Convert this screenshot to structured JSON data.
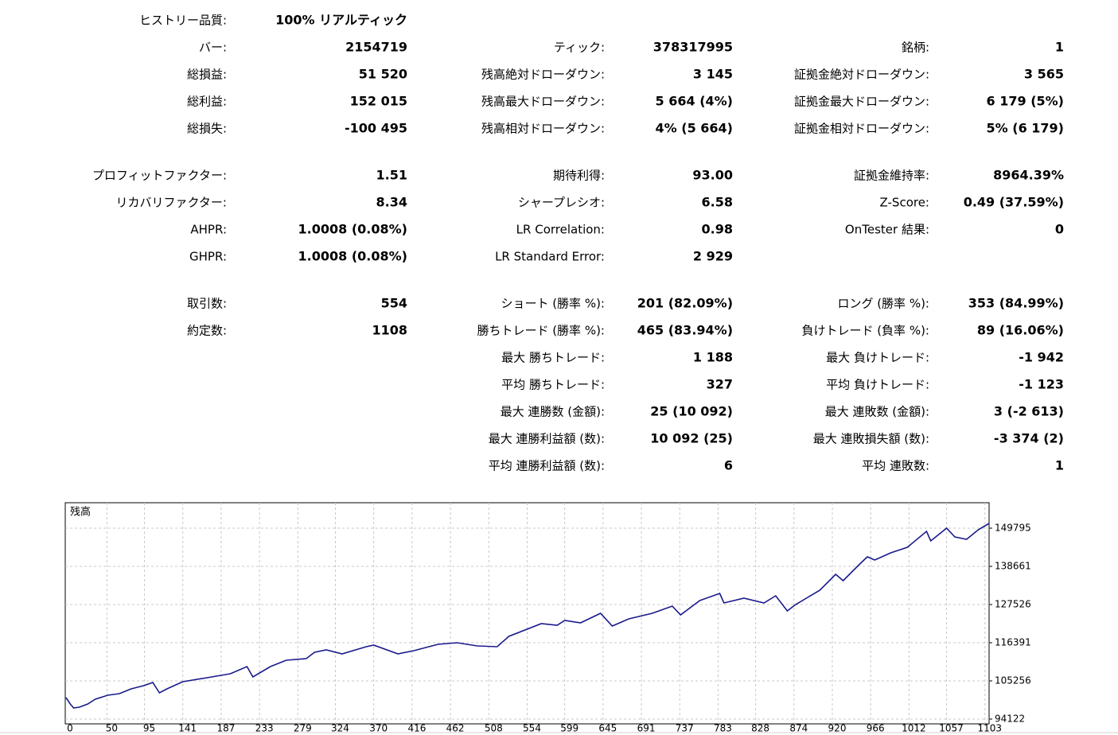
{
  "report": {
    "blocks": [
      [
        {
          "left": [
            "ヒストリー品質:",
            "100% リアルティック"
          ]
        },
        {
          "left": [
            "バー:",
            "2154719"
          ],
          "middle": [
            "ティック:",
            "378317995"
          ],
          "right": [
            "銘柄:",
            "1"
          ]
        },
        {
          "left": [
            "総損益:",
            "51 520"
          ],
          "middle": [
            "残高絶対ドローダウン:",
            "3 145"
          ],
          "right": [
            "証拠金絶対ドローダウン:",
            "3 565"
          ]
        },
        {
          "left": [
            "総利益:",
            "152 015"
          ],
          "middle": [
            "残高最大ドローダウン:",
            "5 664 (4%)"
          ],
          "right": [
            "証拠金最大ドローダウン:",
            "6 179 (5%)"
          ]
        },
        {
          "left": [
            "総損失:",
            "-100 495"
          ],
          "middle": [
            "残高相対ドローダウン:",
            "4% (5 664)"
          ],
          "right": [
            "証拠金相対ドローダウン:",
            "5% (6 179)"
          ]
        }
      ],
      [
        {
          "left": [
            "プロフィットファクター:",
            "1.51"
          ],
          "middle": [
            "期待利得:",
            "93.00"
          ],
          "right": [
            "証拠金維持率:",
            "8964.39%"
          ]
        },
        {
          "left": [
            "リカバリファクター:",
            "8.34"
          ],
          "middle": [
            "シャープレシオ:",
            "6.58"
          ],
          "right": [
            "Z-Score:",
            "0.49 (37.59%)"
          ]
        },
        {
          "left": [
            "AHPR:",
            "1.0008 (0.08%)"
          ],
          "middle": [
            "LR Correlation:",
            "0.98"
          ],
          "right": [
            "OnTester 結果:",
            "0"
          ]
        },
        {
          "left": [
            "GHPR:",
            "1.0008 (0.08%)"
          ],
          "middle": [
            "LR Standard Error:",
            "2 929"
          ]
        }
      ],
      [
        {
          "left": [
            "取引数:",
            "554"
          ],
          "middle": [
            "ショート (勝率 %):",
            "201 (82.09%)"
          ],
          "right": [
            "ロング (勝率 %):",
            "353 (84.99%)"
          ]
        },
        {
          "left": [
            "約定数:",
            "1108"
          ],
          "middle": [
            "勝ちトレード (勝率 %):",
            "465 (83.94%)"
          ],
          "right": [
            "負けトレード (負率 %):",
            "89 (16.06%)"
          ]
        },
        {
          "middle": [
            "最大 勝ちトレード:",
            "1 188"
          ],
          "right": [
            "最大 負けトレード:",
            "-1 942"
          ]
        },
        {
          "middle": [
            "平均 勝ちトレード:",
            "327"
          ],
          "right": [
            "平均 負けトレード:",
            "-1 123"
          ]
        },
        {
          "middle": [
            "最大 連勝数 (金額):",
            "25 (10 092)"
          ],
          "right": [
            "最大 連敗数 (金額):",
            "3 (-2 613)"
          ]
        },
        {
          "middle": [
            "最大 連勝利益額 (数):",
            "10 092 (25)"
          ],
          "right": [
            "最大 連敗損失額 (数):",
            "-3 374 (2)"
          ]
        },
        {
          "middle": [
            "平均 連勝利益額 (数):",
            "6"
          ],
          "right": [
            "平均 連敗数:",
            "1"
          ]
        }
      ]
    ]
  },
  "chart_data": {
    "type": "line",
    "title": "残高",
    "color": "#1a1a8c",
    "grid": true,
    "x": [
      1,
      6,
      10,
      17,
      27,
      36,
      51,
      65,
      79,
      94,
      105,
      113,
      122,
      141,
      170,
      198,
      218,
      225,
      246,
      265,
      289,
      299,
      313,
      332,
      361,
      370,
      399,
      418,
      447,
      470,
      494,
      518,
      532,
      571,
      590,
      599,
      618,
      642,
      656,
      676,
      704,
      728,
      738,
      761,
      785,
      790,
      814,
      838,
      852,
      866,
      876,
      905,
      924,
      933,
      952,
      962,
      971,
      990,
      1010,
      1033,
      1038,
      1057,
      1067,
      1081,
      1095,
      1108
    ],
    "values": [
      100386,
      98530,
      97370,
      97602,
      98530,
      99922,
      101082,
      101546,
      102938,
      103866,
      104794,
      101778,
      102938,
      105026,
      106186,
      107346,
      109434,
      106418,
      109434,
      111290,
      111754,
      113610,
      114306,
      113146,
      115234,
      115698,
      113146,
      114074,
      115930,
      116394,
      115466,
      115234,
      118250,
      121962,
      121498,
      122890,
      122194,
      124978,
      121266,
      123354,
      124978,
      127066,
      124514,
      128690,
      130778,
      127994,
      129386,
      127994,
      130082,
      125674,
      127530,
      131706,
      136346,
      134490,
      139130,
      141450,
      140522,
      142610,
      144234,
      148874,
      146090,
      149802,
      147250,
      146554,
      149338,
      151194
    ],
    "xlim": [
      0,
      1108
    ],
    "ylim": [
      92730,
      157218
    ],
    "xticks": [
      0,
      50,
      95,
      141,
      187,
      233,
      279,
      324,
      370,
      416,
      462,
      508,
      554,
      599,
      645,
      691,
      737,
      783,
      828,
      874,
      920,
      966,
      1012,
      1057,
      1103
    ],
    "yticks": [
      94122,
      105256,
      116391,
      127526,
      138661,
      149795
    ]
  }
}
